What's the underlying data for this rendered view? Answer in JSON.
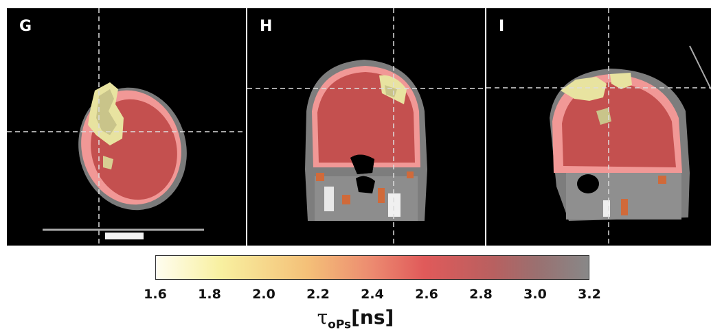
{
  "panels": [
    {
      "label": "G"
    },
    {
      "label": "H"
    },
    {
      "label": "I"
    }
  ],
  "colorbar": {
    "ticks": [
      "1.6",
      "1.8",
      "2.0",
      "2.2",
      "2.4",
      "2.6",
      "2.8",
      "3.0",
      "3.2"
    ],
    "range": [
      1.6,
      3.2
    ],
    "symbol": "τ",
    "subscript": "oPs",
    "unit": "[ns]",
    "colors": [
      "#fffdf0",
      "#f8f0a0",
      "#f4c078",
      "#ec8a70",
      "#e05a5a",
      "#b86060",
      "#888888"
    ]
  }
}
